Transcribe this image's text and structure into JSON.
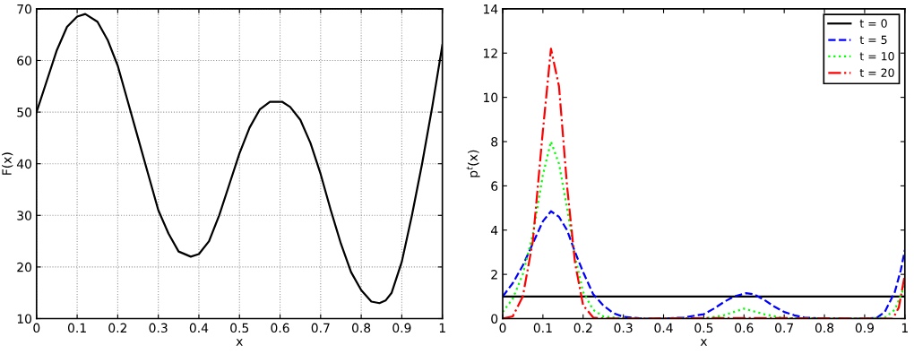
{
  "chart_data": [
    {
      "type": "line",
      "xlabel": "x",
      "ylabel": "F(x)",
      "xlim": [
        0,
        1
      ],
      "ylim": [
        10,
        70
      ],
      "xticks": [
        0,
        0.1,
        0.2,
        0.3,
        0.4,
        0.5,
        0.6,
        0.7,
        0.8,
        0.9,
        1
      ],
      "yticks": [
        10,
        20,
        30,
        40,
        50,
        60,
        70
      ],
      "grid": true,
      "line_style": "solid",
      "series": [
        {
          "color": "#000000",
          "x": [
            0,
            0.025,
            0.05,
            0.075,
            0.1,
            0.12,
            0.15,
            0.175,
            0.2,
            0.225,
            0.25,
            0.275,
            0.3,
            0.325,
            0.35,
            0.38,
            0.4,
            0.425,
            0.45,
            0.475,
            0.5,
            0.525,
            0.55,
            0.575,
            0.605,
            0.625,
            0.65,
            0.675,
            0.7,
            0.725,
            0.75,
            0.775,
            0.8,
            0.825,
            0.845,
            0.86,
            0.875,
            0.9,
            0.925,
            0.95,
            0.975,
            1
          ],
          "values": [
            50,
            56,
            62,
            66.5,
            68.5,
            69,
            67.5,
            64,
            59,
            52,
            45,
            38,
            31,
            26.5,
            23,
            22,
            22.5,
            25,
            30,
            36,
            42,
            47,
            50.5,
            52,
            52,
            51,
            48.5,
            44,
            38,
            31,
            24.5,
            19,
            15.5,
            13.3,
            13,
            13.5,
            15,
            21,
            30,
            40,
            51,
            63
          ]
        }
      ]
    },
    {
      "type": "line",
      "xlabel": "x",
      "ylabel": "p$^{t}$(x)",
      "xlim": [
        0,
        1
      ],
      "ylim": [
        0,
        14
      ],
      "xticks": [
        0,
        0.1,
        0.2,
        0.3,
        0.4,
        0.5,
        0.6,
        0.7,
        0.8,
        0.9,
        1
      ],
      "yticks": [
        0,
        2,
        4,
        6,
        8,
        10,
        12,
        14
      ],
      "grid": false,
      "legend": "top right",
      "series": [
        {
          "name": "t = 0",
          "color": "#000000",
          "line_style": "solid",
          "x": [
            0,
            1
          ],
          "values": [
            1,
            1
          ]
        },
        {
          "name": "t = 5",
          "color": "#0000ff",
          "line_style": "dashed",
          "x": [
            0,
            0.025,
            0.05,
            0.075,
            0.1,
            0.12,
            0.14,
            0.16,
            0.18,
            0.2,
            0.225,
            0.25,
            0.275,
            0.3,
            0.35,
            0.4,
            0.45,
            0.5,
            0.525,
            0.55,
            0.575,
            0.605,
            0.625,
            0.65,
            0.675,
            0.7,
            0.725,
            0.75,
            0.8,
            0.9,
            0.93,
            0.95,
            0.975,
            0.99,
            1
          ],
          "values": [
            1.0,
            1.6,
            2.4,
            3.4,
            4.4,
            4.85,
            4.6,
            4.0,
            3.0,
            2.1,
            1.1,
            0.6,
            0.25,
            0.08,
            0,
            0,
            0.05,
            0.2,
            0.45,
            0.75,
            1.0,
            1.15,
            1.1,
            0.85,
            0.55,
            0.3,
            0.15,
            0.05,
            0,
            0,
            0.03,
            0.3,
            1.2,
            2.2,
            3.1
          ]
        },
        {
          "name": "t = 10",
          "color": "#00ff00",
          "line_style": "dotted",
          "x": [
            0,
            0.025,
            0.05,
            0.075,
            0.1,
            0.12,
            0.14,
            0.16,
            0.18,
            0.2,
            0.225,
            0.25,
            0.3,
            0.5,
            0.55,
            0.6,
            0.65,
            0.7,
            0.9,
            0.95,
            0.975,
            1
          ],
          "values": [
            0.3,
            0.9,
            2.0,
            3.8,
            6.5,
            8.0,
            7.0,
            5.0,
            2.8,
            1.2,
            0.4,
            0.1,
            0,
            0,
            0.15,
            0.45,
            0.2,
            0.02,
            0,
            0.05,
            0.4,
            1.5
          ]
        },
        {
          "name": "t = 20",
          "color": "#ff0000",
          "line_style": "dashdot",
          "x": [
            0,
            0.025,
            0.05,
            0.075,
            0.1,
            0.12,
            0.14,
            0.16,
            0.18,
            0.2,
            0.225,
            0.25,
            0.6,
            0.97,
            0.985,
            1
          ],
          "values": [
            0,
            0.1,
            1.0,
            3.5,
            8.5,
            12.2,
            10.5,
            6.0,
            2.5,
            0.6,
            0.05,
            0,
            0.03,
            0,
            0.5,
            2.0
          ]
        }
      ]
    }
  ]
}
